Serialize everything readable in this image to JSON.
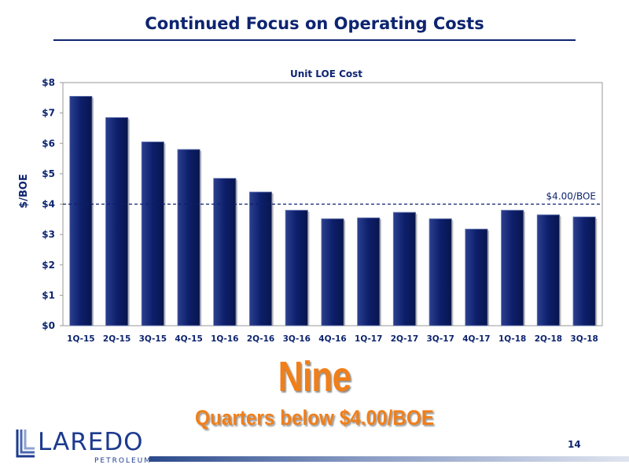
{
  "slide": {
    "title": "Continued Focus on Operating Costs",
    "headline": "Nine",
    "subline": "Quarters below $4.00/BOE",
    "page_number": "14"
  },
  "logo": {
    "word": "LAREDO",
    "sub": "PETROLEUM",
    "color": "#1c3a8f"
  },
  "colors": {
    "bar": "#0d1f6b",
    "accent": "#f07f1a",
    "title": "#0d2470"
  },
  "chart_data": {
    "type": "bar",
    "title": "Unit LOE Cost",
    "xlabel": "",
    "ylabel": "$/BOE",
    "ylim": [
      0,
      8
    ],
    "yticks": [
      0,
      1,
      2,
      3,
      4,
      5,
      6,
      7,
      8
    ],
    "ytick_labels": [
      "$0",
      "$1",
      "$2",
      "$3",
      "$4",
      "$5",
      "$6",
      "$7",
      "$8"
    ],
    "categories": [
      "1Q-15",
      "2Q-15",
      "3Q-15",
      "4Q-15",
      "1Q-16",
      "2Q-16",
      "3Q-16",
      "4Q-16",
      "1Q-17",
      "2Q-17",
      "3Q-17",
      "4Q-17",
      "1Q-18",
      "2Q-18",
      "3Q-18"
    ],
    "values": [
      7.55,
      6.85,
      6.05,
      5.8,
      4.85,
      4.4,
      3.8,
      3.52,
      3.55,
      3.73,
      3.52,
      3.18,
      3.8,
      3.65,
      3.58
    ],
    "reference_line": {
      "value": 4.0,
      "label": "$4.00/BOE"
    },
    "grid": false,
    "legend": "none"
  }
}
